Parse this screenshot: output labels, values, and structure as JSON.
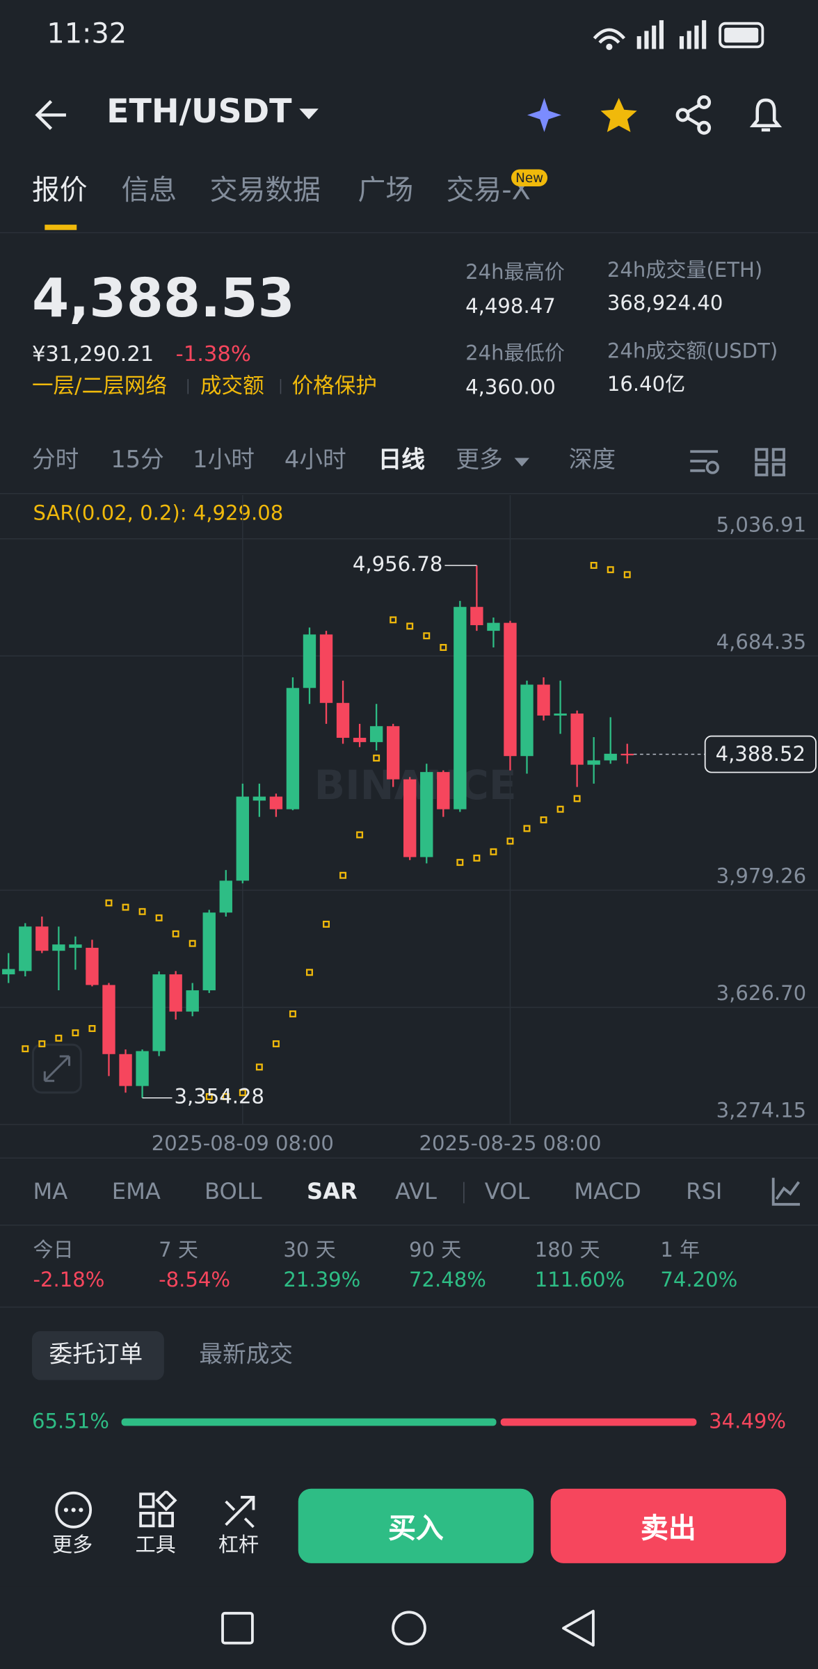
{
  "status_bar": {
    "time": "11:32"
  },
  "header": {
    "pair": "ETH/USDT"
  },
  "tabs": {
    "items": [
      "报价",
      "信息",
      "交易数据",
      "广场",
      "交易-X"
    ],
    "badge": "New"
  },
  "price": {
    "last": "4,388.53",
    "fiat": "¥31,290.21",
    "change": "-1.38%",
    "tags": [
      "一层/二层网络",
      "成交额",
      "价格保护"
    ]
  },
  "stats": [
    {
      "label": "24h最高价",
      "value": "4,498.47"
    },
    {
      "label": "24h成交量(ETH)",
      "value": "368,924.40"
    },
    {
      "label": "24h最低价",
      "value": "4,360.00"
    },
    {
      "label": "24h成交额(USDT)",
      "value": "16.40亿"
    }
  ],
  "intervals": [
    "分时",
    "15分",
    "1小时",
    "4小时",
    "日线",
    "更多",
    "深度"
  ],
  "chart_data": {
    "type": "candlestick",
    "indicator_label": "SAR(0.02, 0.2): 4,929.08",
    "watermark": "BINANCE",
    "categories": [
      null,
      null,
      null,
      null,
      null,
      null,
      null,
      null,
      null,
      null,
      null,
      null,
      null,
      null,
      "2025-08-09 08:00",
      null,
      null,
      null,
      null,
      null,
      null,
      null,
      null,
      null,
      null,
      null,
      null,
      null,
      null,
      null,
      "2025-08-25 08:00",
      null,
      null,
      null,
      null,
      null,
      null,
      null
    ],
    "candles": {
      "up_color": "#2ebd85",
      "down_color": "#f6465d",
      "open": [
        3726,
        3736,
        3870,
        3797,
        3806,
        3806,
        3694,
        3486,
        3390,
        3495,
        3726,
        3614,
        3678,
        3912,
        4008,
        4249,
        4261,
        4223,
        4588,
        4749,
        4543,
        4438,
        4425,
        4473,
        4313,
        4079,
        4335,
        4223,
        4832,
        4760,
        4784,
        4383,
        4598,
        4505,
        4511,
        4357,
        4370,
        4390
      ],
      "high": [
        3790,
        3880,
        3900,
        3870,
        3840,
        3830,
        3700,
        3500,
        3500,
        3735,
        3736,
        3700,
        3920,
        4040,
        4300,
        4300,
        4270,
        4620,
        4770,
        4760,
        4610,
        4480,
        4540,
        4480,
        4320,
        4360,
        4340,
        4850,
        4956.78,
        4800,
        4790,
        4610,
        4620,
        4610,
        4520,
        4440,
        4500,
        4420
      ],
      "low": [
        3700,
        3720,
        3790,
        3678,
        3740,
        3690,
        3420,
        3370,
        3354.28,
        3480,
        3590,
        3600,
        3670,
        3900,
        4000,
        4200,
        4200,
        4220,
        4540,
        4480,
        4420,
        4410,
        4400,
        4290,
        4070,
        4060,
        4200,
        4215,
        4760,
        4710,
        4340,
        4330,
        4490,
        4450,
        4290,
        4300,
        4360,
        4360
      ],
      "close": [
        3742,
        3870,
        3797,
        3816,
        3816,
        3694,
        3486,
        3390,
        3495,
        3726,
        3614,
        3678,
        3912,
        4008,
        4261,
        4261,
        4223,
        4588,
        4749,
        4543,
        4438,
        4425,
        4473,
        4313,
        4079,
        4335,
        4223,
        4832,
        4777,
        4784,
        4383,
        4598,
        4505,
        4511,
        4357,
        4370,
        4390,
        4388.52
      ],
      "high_label": "4,956.78",
      "low_label": "3,354.28",
      "last_label": "4,388.52"
    },
    "sar": {
      "color": "#f0b90b",
      "values": [
        null,
        3502,
        3517,
        3534,
        3550,
        3563,
        3941,
        3928,
        3915,
        3896,
        3848,
        3819,
        3358,
        3358,
        3370,
        3447,
        3517,
        3607,
        3732,
        3877,
        4024,
        4146,
        4377,
        4793,
        4774,
        4745,
        4710,
        4063,
        4076,
        4095,
        4127,
        4165,
        4191,
        4223,
        4255,
        4957,
        4944,
        4929.08
      ]
    },
    "ylim": [
      3274.15,
      5168.3
    ],
    "yticks": [
      {
        "value": 5036.91,
        "label": "5,036.91"
      },
      {
        "value": 4684.35,
        "label": "4,684.35"
      },
      {
        "value": 3979.26,
        "label": "3,979.26"
      },
      {
        "value": 3626.7,
        "label": "3,626.70"
      },
      {
        "value": 3274.15,
        "label": "3,274.15"
      }
    ],
    "grid": true
  },
  "indicators": [
    "MA",
    "EMA",
    "BOLL",
    "SAR",
    "AVL",
    "VOL",
    "MACD",
    "RSI"
  ],
  "performance": [
    {
      "label": "今日",
      "value": "-2.18%"
    },
    {
      "label": "7 天",
      "value": "-8.54%"
    },
    {
      "label": "30 天",
      "value": "21.39%"
    },
    {
      "label": "90 天",
      "value": "72.48%"
    },
    {
      "label": "180 天",
      "value": "111.60%"
    },
    {
      "label": "1 年",
      "value": "74.20%"
    }
  ],
  "order_tabs": [
    "委托订单",
    "最新成交"
  ],
  "order_ratio": {
    "values": [
      65.51,
      34.49
    ],
    "value_labels": [
      "65.51%",
      "34.49%"
    ]
  },
  "bottom_bar": {
    "tools": [
      "更多",
      "工具",
      "杠杆"
    ],
    "buy": "买入",
    "sell": "卖出"
  }
}
